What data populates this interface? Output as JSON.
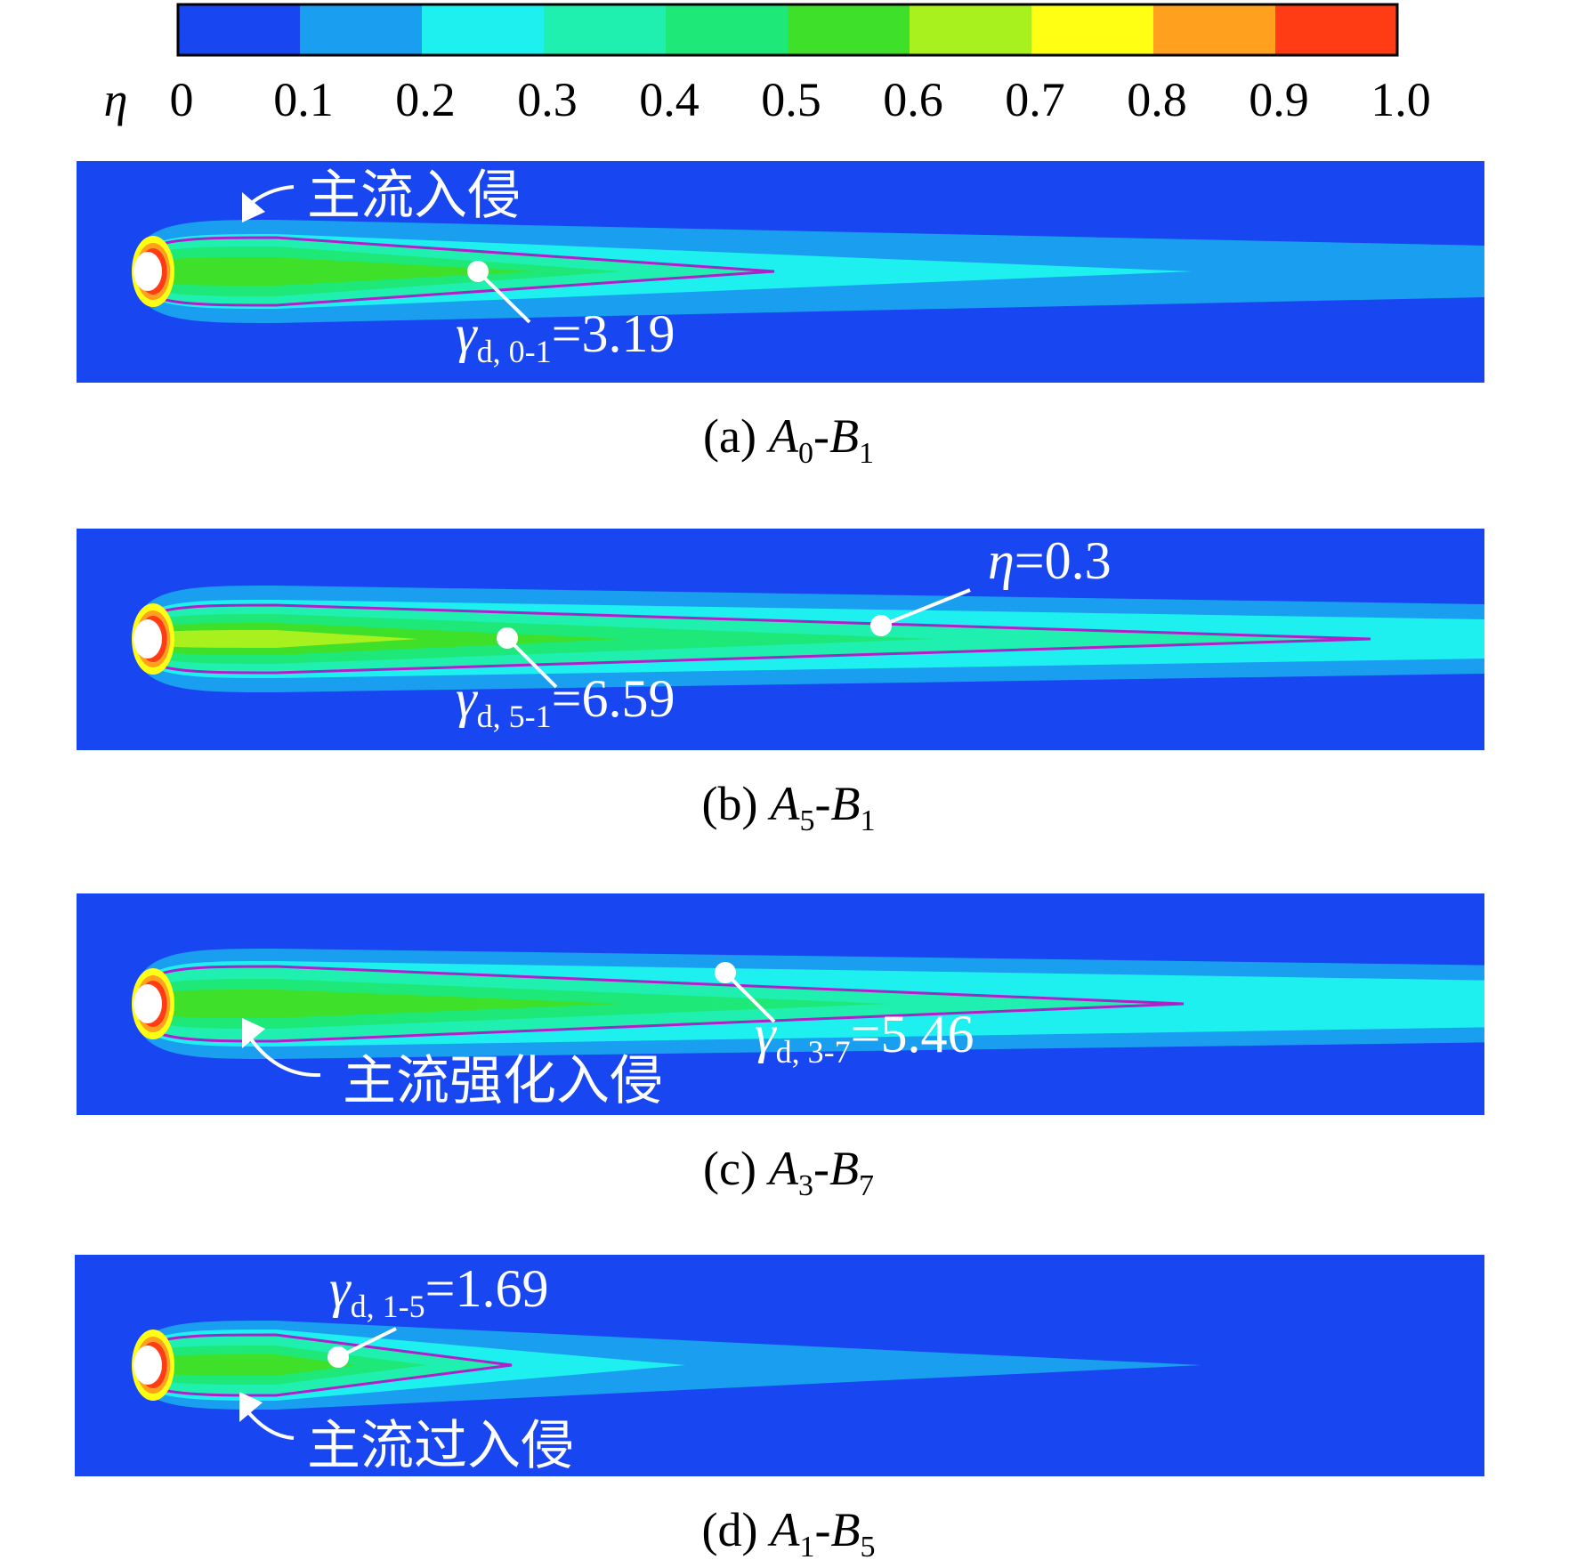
{
  "colorbar": {
    "symbol": "η",
    "colors": [
      "#1846f0",
      "#1a9ef0",
      "#1ef0f0",
      "#1ff0b0",
      "#1ee878",
      "#3ee02a",
      "#a8f01e",
      "#ffff14",
      "#ffa01e",
      "#ff3c14"
    ],
    "ticks": [
      0,
      0.1,
      0.2,
      0.3,
      0.4,
      0.5,
      0.6,
      0.7,
      0.8,
      0.9,
      {
        "value": 1,
        "label": "1.0"
      }
    ]
  },
  "panels": [
    {
      "intrusion_label": "主流入侵",
      "gamma": {
        "symbol": "γ",
        "subscript": "d, 0-1",
        "text": "=3.19"
      },
      "caption": {
        "label": "(a)",
        "a": "A",
        "a_sub": "0",
        "sep": "-",
        "b": "B",
        "b_sub": "1"
      }
    },
    {
      "eta_label": {
        "symbol": "η",
        "text": "=0.3"
      },
      "gamma": {
        "symbol": "γ",
        "subscript": "d, 5-1",
        "text": "=6.59"
      },
      "caption": {
        "label": "(b)",
        "a": "A",
        "a_sub": "5",
        "sep": "-",
        "b": "B",
        "b_sub": "1"
      }
    },
    {
      "intrusion_label": "主流强化入侵",
      "gamma": {
        "symbol": "γ",
        "subscript": "d, 3-7",
        "text": "=5.46"
      },
      "caption": {
        "label": "(c)",
        "a": "A",
        "a_sub": "3",
        "sep": "-",
        "b": "B",
        "b_sub": "7"
      }
    },
    {
      "intrusion_label": "主流过入侵",
      "gamma": {
        "symbol": "γ",
        "subscript": "d, 1-5",
        "text": "=1.69"
      },
      "caption": {
        "label": "(d)",
        "a": "A",
        "a_sub": "1",
        "sep": "-",
        "b": "B",
        "b_sub": "5"
      }
    }
  ]
}
